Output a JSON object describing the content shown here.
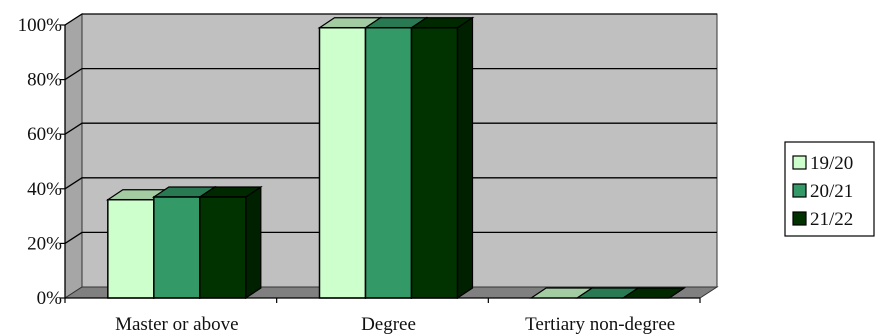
{
  "chart_data": {
    "type": "bar",
    "style": "3d-clustered",
    "categories": [
      "Master or above",
      "Degree",
      "Tertiary non-degree"
    ],
    "series": [
      {
        "name": "19/20",
        "values": [
          36,
          99,
          0
        ],
        "color": "#ccffcc"
      },
      {
        "name": "20/21",
        "values": [
          37,
          99,
          0
        ],
        "color": "#339966"
      },
      {
        "name": "21/22",
        "values": [
          37,
          99,
          0
        ],
        "color": "#003300"
      }
    ],
    "yticks": [
      "0%",
      "20%",
      "40%",
      "60%",
      "80%",
      "100%"
    ],
    "ylim": [
      0,
      100
    ],
    "grid": true,
    "legend": "right",
    "wall_color": "#c0c0c0",
    "floor_color": "#808080"
  }
}
